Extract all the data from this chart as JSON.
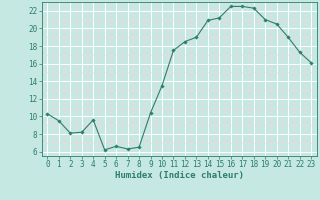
{
  "x": [
    0,
    1,
    2,
    3,
    4,
    5,
    6,
    7,
    8,
    9,
    10,
    11,
    12,
    13,
    14,
    15,
    16,
    17,
    18,
    19,
    20,
    21,
    22,
    23
  ],
  "y": [
    10.3,
    9.5,
    8.1,
    8.2,
    9.6,
    6.2,
    6.6,
    6.3,
    6.5,
    10.4,
    13.5,
    17.5,
    18.5,
    19.0,
    20.9,
    21.2,
    22.5,
    22.5,
    22.3,
    21.0,
    20.5,
    19.0,
    17.3,
    16.1
  ],
  "line_color": "#2e7d6e",
  "marker": "D",
  "marker_size": 1.8,
  "bg_color": "#c5e8e2",
  "grid_major_color": "#ffffff",
  "grid_minor_color": "#f2d8d8",
  "xlabel": "Humidex (Indice chaleur)",
  "xlim": [
    -0.5,
    23.5
  ],
  "ylim": [
    5.5,
    23.0
  ],
  "yticks": [
    6,
    8,
    10,
    12,
    14,
    16,
    18,
    20,
    22
  ],
  "xticks": [
    0,
    1,
    2,
    3,
    4,
    5,
    6,
    7,
    8,
    9,
    10,
    11,
    12,
    13,
    14,
    15,
    16,
    17,
    18,
    19,
    20,
    21,
    22,
    23
  ],
  "tick_label_size": 5.5,
  "xlabel_size": 6.5,
  "linewidth": 0.8
}
